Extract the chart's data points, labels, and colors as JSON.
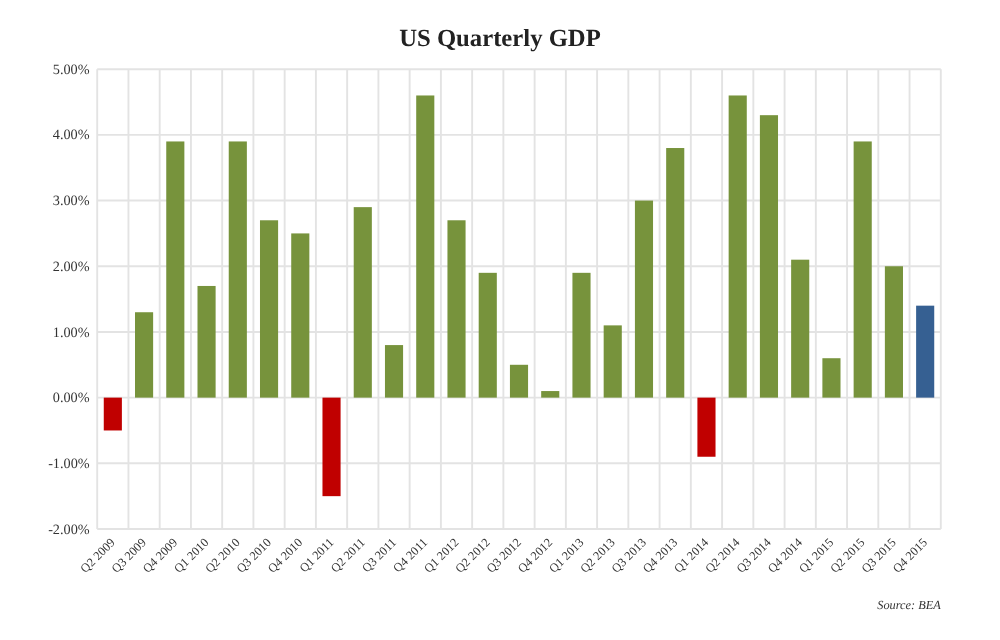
{
  "chart_data": {
    "type": "bar",
    "title": "US Quarterly GDP",
    "categories": [
      "Q2 2009",
      "Q3 2009",
      "Q4 2009",
      "Q1 2010",
      "Q2 2010",
      "Q3 2010",
      "Q4 2010",
      "Q1 2011",
      "Q2 2011",
      "Q3 2011",
      "Q4 2011",
      "Q1 2012",
      "Q2 2012",
      "Q3 2012",
      "Q4 2012",
      "Q1 2013",
      "Q2 2013",
      "Q3 2013",
      "Q4 2013",
      "Q1 2014",
      "Q2 2014",
      "Q3 2014",
      "Q4 2014",
      "Q1 2015",
      "Q2 2015",
      "Q3 2015",
      "Q4 2015"
    ],
    "values": [
      -0.5,
      1.3,
      3.9,
      1.7,
      3.9,
      2.7,
      2.5,
      -1.5,
      2.9,
      0.8,
      4.6,
      2.7,
      1.9,
      0.5,
      0.1,
      1.9,
      1.1,
      3.0,
      3.8,
      -0.9,
      4.6,
      4.3,
      2.1,
      0.6,
      3.9,
      2.0,
      1.4
    ],
    "colors": [
      "#c00000",
      "#77933c",
      "#77933c",
      "#77933c",
      "#77933c",
      "#77933c",
      "#77933c",
      "#c00000",
      "#77933c",
      "#77933c",
      "#77933c",
      "#77933c",
      "#77933c",
      "#77933c",
      "#77933c",
      "#77933c",
      "#77933c",
      "#77933c",
      "#77933c",
      "#c00000",
      "#77933c",
      "#77933c",
      "#77933c",
      "#77933c",
      "#77933c",
      "#77933c",
      "#366092"
    ],
    "ylim": [
      -2,
      5
    ],
    "yticks": [
      {
        "value": -2,
        "label": "-2.00%"
      },
      {
        "value": -1,
        "label": "-1.00%"
      },
      {
        "value": 0,
        "label": "0.00%"
      },
      {
        "value": 1,
        "label": "1.00%"
      },
      {
        "value": 2,
        "label": "2.00%"
      },
      {
        "value": 3,
        "label": "3.00%"
      },
      {
        "value": 4,
        "label": "4.00%"
      },
      {
        "value": 5,
        "label": "5.00%"
      }
    ],
    "grid": true,
    "annotations": [
      "Source: BEA"
    ]
  }
}
